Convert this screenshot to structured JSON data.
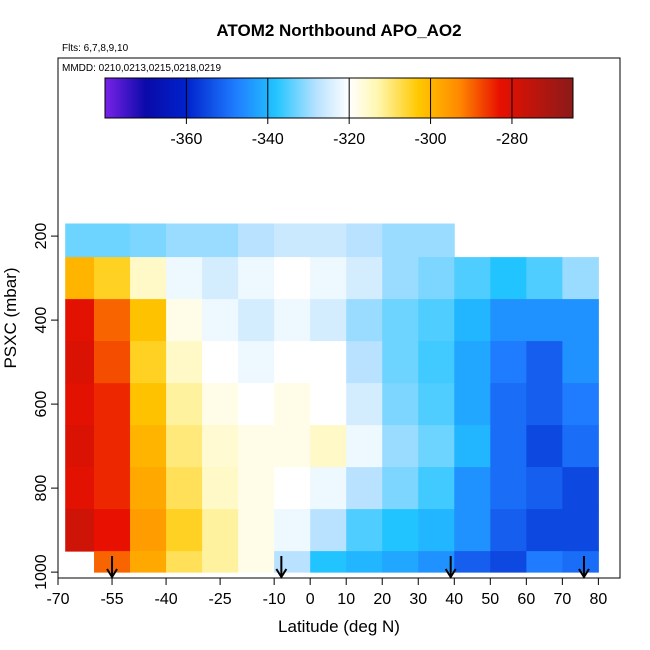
{
  "chart_data": {
    "type": "heatmap",
    "title": "ATOM2 Northbound APO_AO2",
    "note_flights": "Flts: 6,7,8,9,10",
    "note_dates": "MMDD: 0210,0213,0215,0218,0219",
    "x_label": "Latitude (deg N)",
    "y_label": "PSXC (mbar)",
    "xlim": [
      -70,
      86
    ],
    "ylim": [
      1014,
      -224
    ],
    "xticks": [
      -70,
      -55,
      -40,
      -25,
      -10,
      0,
      10,
      20,
      30,
      40,
      50,
      60,
      70,
      80
    ],
    "yticks": [
      200,
      400,
      600,
      800,
      1000
    ],
    "lat_edges": [
      -68,
      -60,
      -50,
      -40,
      -30,
      -20,
      -10,
      0,
      10,
      20,
      30,
      40,
      50,
      60,
      70,
      80
    ],
    "pressure_edges": [
      170,
      250,
      350,
      450,
      550,
      650,
      750,
      850,
      950,
      1000
    ],
    "values": [
      [
        -333,
        -333,
        -332,
        -330,
        -330,
        -328,
        -326,
        -326,
        -328,
        -330,
        -330,
        null,
        null,
        null,
        null
      ],
      [
        -300,
        -305,
        -315,
        -322,
        -325,
        -322,
        -320,
        -322,
        -325,
        -330,
        -332,
        -335,
        -338,
        -335,
        -330
      ],
      [
        -282,
        -290,
        -302,
        -318,
        -322,
        -325,
        -322,
        -325,
        -330,
        -333,
        -335,
        -340,
        -345,
        -345,
        -345
      ],
      [
        -280,
        -288,
        -305,
        -315,
        -320,
        -322,
        -320,
        -320,
        -328,
        -333,
        -336,
        -342,
        -348,
        -352,
        -345
      ],
      [
        -282,
        -285,
        -302,
        -312,
        -318,
        -320,
        -318,
        -320,
        -325,
        -332,
        -335,
        -342,
        -350,
        -352,
        -348
      ],
      [
        -280,
        -285,
        -300,
        -310,
        -316,
        -318,
        -318,
        -315,
        -322,
        -330,
        -333,
        -340,
        -350,
        -355,
        -350
      ],
      [
        -282,
        -285,
        -298,
        -308,
        -315,
        -318,
        -320,
        -322,
        -328,
        -332,
        -336,
        -345,
        -350,
        -352,
        -355
      ],
      [
        -278,
        -283,
        -296,
        -305,
        -312,
        -318,
        -322,
        -328,
        -335,
        -338,
        -340,
        -345,
        -352,
        -355,
        -355
      ],
      [
        null,
        -290,
        -298,
        -308,
        -312,
        -318,
        -328,
        -338,
        -340,
        -342,
        -345,
        -352,
        -355,
        -348,
        -350
      ]
    ],
    "arrows": [
      -55,
      -8,
      39,
      76
    ],
    "clim": [
      -380,
      -265
    ],
    "cticks": [
      -360,
      -340,
      -320,
      -300,
      -280
    ],
    "colorscale": [
      [
        -380,
        "#7a22e8"
      ],
      [
        -370,
        "#0a0aa8"
      ],
      [
        -360,
        "#0022cc"
      ],
      [
        -348,
        "#1f7cff"
      ],
      [
        -338,
        "#22c4ff"
      ],
      [
        -328,
        "#b8e2ff"
      ],
      [
        -320,
        "#ffffff"
      ],
      [
        -313,
        "#fff7b0"
      ],
      [
        -303,
        "#ffc800"
      ],
      [
        -293,
        "#ff8a00"
      ],
      [
        -283,
        "#e81000"
      ],
      [
        -265,
        "#8b1a1a"
      ]
    ]
  }
}
